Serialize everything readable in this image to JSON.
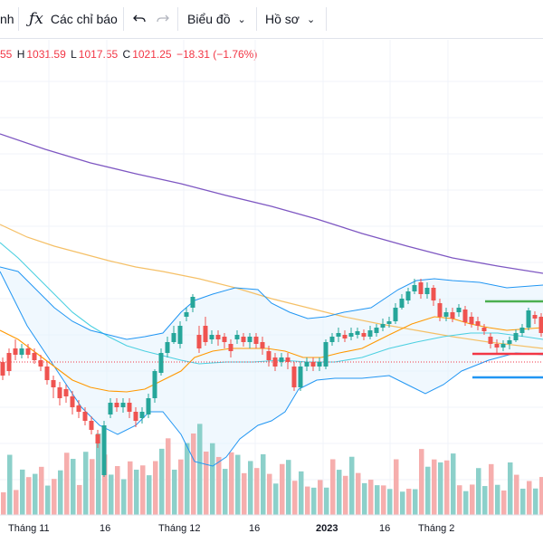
{
  "toolbar": {
    "partial_label": "nh",
    "indicators_label": "Các chỉ báo",
    "chart_label": "Biểu đồ",
    "profile_label": "Hồ sơ"
  },
  "ohlc": {
    "open": "55",
    "high_label": "H",
    "high": "1031.59",
    "low_label": "L",
    "low": "1017.55",
    "close_label": "C",
    "close": "1021.25",
    "change": "−18.31 (−1.76%)"
  },
  "colors": {
    "up": "#26a69a",
    "down": "#ef5350",
    "bb_band": "#2196f3",
    "bb_fill": "#e3f2fd",
    "ma_orange": "#ff9800",
    "ma_yellow": "#f5c067",
    "ma_purple": "#7e57c2",
    "ma_cyan": "#4dd0e1",
    "line_green": "#4caf50",
    "line_red": "#f23645",
    "line_blue": "#2196f3"
  },
  "chart_data": {
    "type": "candlestick",
    "x_labels": [
      "Tháng 11",
      "16",
      "Tháng 12",
      "16",
      "2023",
      "16",
      "Tháng 2"
    ],
    "series": []
  }
}
